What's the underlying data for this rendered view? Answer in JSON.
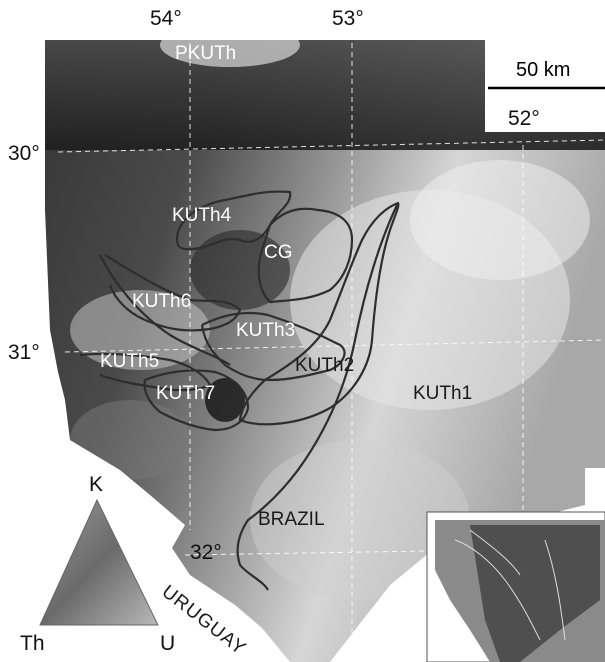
{
  "map": {
    "longitudes": [
      "54°",
      "53°",
      "52°"
    ],
    "latitudes": [
      "30°",
      "31°",
      "32°"
    ],
    "scale_bar": "50 km",
    "units": {
      "pkuth": "PKUTh",
      "kuth1": "KUTh1",
      "kuth2": "KUTh2",
      "kuth3": "KUTh3",
      "kuth4": "KUTh4",
      "kuth5": "KUTh5",
      "kuth6": "KUTh6",
      "kuth7": "KUTh7",
      "cg": "CG"
    },
    "countries": {
      "brazil": "BRAZIL",
      "uruguay": "URUGUAY"
    },
    "ternary": {
      "top": "K",
      "left": "Th",
      "right": "U"
    }
  },
  "colors": {
    "background": "#ffffff",
    "contour": "#2e2e2e",
    "grid": "#ffffff"
  }
}
